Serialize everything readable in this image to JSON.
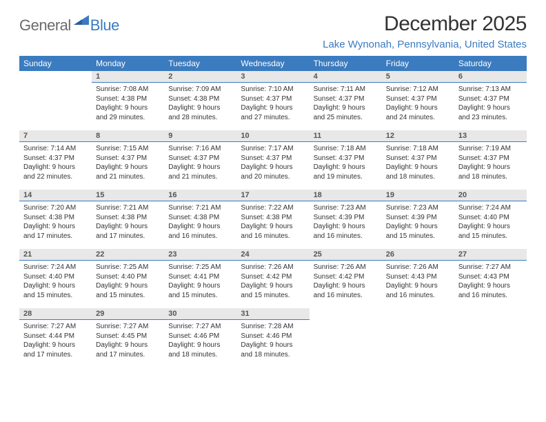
{
  "logo": {
    "general": "General",
    "blue": "Blue"
  },
  "title": "December 2025",
  "location": "Lake Wynonah, Pennsylvania, United States",
  "colors": {
    "header_bg": "#3b7bbf",
    "header_text": "#ffffff",
    "daynum_bg": "#e8e8e8",
    "daynum_border": "#3b7bbf",
    "logo_gray": "#6b6b6b",
    "logo_blue": "#3b7bbf",
    "body_text": "#333333",
    "page_bg": "#ffffff"
  },
  "fonts": {
    "title_size": 30,
    "location_size": 15,
    "dayheader_size": 12,
    "daynum_size": 11,
    "body_size": 10
  },
  "day_headers": [
    "Sunday",
    "Monday",
    "Tuesday",
    "Wednesday",
    "Thursday",
    "Friday",
    "Saturday"
  ],
  "weeks": [
    [
      null,
      {
        "n": "1",
        "sr": "Sunrise: 7:08 AM",
        "ss": "Sunset: 4:38 PM",
        "d1": "Daylight: 9 hours",
        "d2": "and 29 minutes."
      },
      {
        "n": "2",
        "sr": "Sunrise: 7:09 AM",
        "ss": "Sunset: 4:38 PM",
        "d1": "Daylight: 9 hours",
        "d2": "and 28 minutes."
      },
      {
        "n": "3",
        "sr": "Sunrise: 7:10 AM",
        "ss": "Sunset: 4:37 PM",
        "d1": "Daylight: 9 hours",
        "d2": "and 27 minutes."
      },
      {
        "n": "4",
        "sr": "Sunrise: 7:11 AM",
        "ss": "Sunset: 4:37 PM",
        "d1": "Daylight: 9 hours",
        "d2": "and 25 minutes."
      },
      {
        "n": "5",
        "sr": "Sunrise: 7:12 AM",
        "ss": "Sunset: 4:37 PM",
        "d1": "Daylight: 9 hours",
        "d2": "and 24 minutes."
      },
      {
        "n": "6",
        "sr": "Sunrise: 7:13 AM",
        "ss": "Sunset: 4:37 PM",
        "d1": "Daylight: 9 hours",
        "d2": "and 23 minutes."
      }
    ],
    [
      {
        "n": "7",
        "sr": "Sunrise: 7:14 AM",
        "ss": "Sunset: 4:37 PM",
        "d1": "Daylight: 9 hours",
        "d2": "and 22 minutes."
      },
      {
        "n": "8",
        "sr": "Sunrise: 7:15 AM",
        "ss": "Sunset: 4:37 PM",
        "d1": "Daylight: 9 hours",
        "d2": "and 21 minutes."
      },
      {
        "n": "9",
        "sr": "Sunrise: 7:16 AM",
        "ss": "Sunset: 4:37 PM",
        "d1": "Daylight: 9 hours",
        "d2": "and 21 minutes."
      },
      {
        "n": "10",
        "sr": "Sunrise: 7:17 AM",
        "ss": "Sunset: 4:37 PM",
        "d1": "Daylight: 9 hours",
        "d2": "and 20 minutes."
      },
      {
        "n": "11",
        "sr": "Sunrise: 7:18 AM",
        "ss": "Sunset: 4:37 PM",
        "d1": "Daylight: 9 hours",
        "d2": "and 19 minutes."
      },
      {
        "n": "12",
        "sr": "Sunrise: 7:18 AM",
        "ss": "Sunset: 4:37 PM",
        "d1": "Daylight: 9 hours",
        "d2": "and 18 minutes."
      },
      {
        "n": "13",
        "sr": "Sunrise: 7:19 AM",
        "ss": "Sunset: 4:37 PM",
        "d1": "Daylight: 9 hours",
        "d2": "and 18 minutes."
      }
    ],
    [
      {
        "n": "14",
        "sr": "Sunrise: 7:20 AM",
        "ss": "Sunset: 4:38 PM",
        "d1": "Daylight: 9 hours",
        "d2": "and 17 minutes."
      },
      {
        "n": "15",
        "sr": "Sunrise: 7:21 AM",
        "ss": "Sunset: 4:38 PM",
        "d1": "Daylight: 9 hours",
        "d2": "and 17 minutes."
      },
      {
        "n": "16",
        "sr": "Sunrise: 7:21 AM",
        "ss": "Sunset: 4:38 PM",
        "d1": "Daylight: 9 hours",
        "d2": "and 16 minutes."
      },
      {
        "n": "17",
        "sr": "Sunrise: 7:22 AM",
        "ss": "Sunset: 4:38 PM",
        "d1": "Daylight: 9 hours",
        "d2": "and 16 minutes."
      },
      {
        "n": "18",
        "sr": "Sunrise: 7:23 AM",
        "ss": "Sunset: 4:39 PM",
        "d1": "Daylight: 9 hours",
        "d2": "and 16 minutes."
      },
      {
        "n": "19",
        "sr": "Sunrise: 7:23 AM",
        "ss": "Sunset: 4:39 PM",
        "d1": "Daylight: 9 hours",
        "d2": "and 15 minutes."
      },
      {
        "n": "20",
        "sr": "Sunrise: 7:24 AM",
        "ss": "Sunset: 4:40 PM",
        "d1": "Daylight: 9 hours",
        "d2": "and 15 minutes."
      }
    ],
    [
      {
        "n": "21",
        "sr": "Sunrise: 7:24 AM",
        "ss": "Sunset: 4:40 PM",
        "d1": "Daylight: 9 hours",
        "d2": "and 15 minutes."
      },
      {
        "n": "22",
        "sr": "Sunrise: 7:25 AM",
        "ss": "Sunset: 4:40 PM",
        "d1": "Daylight: 9 hours",
        "d2": "and 15 minutes."
      },
      {
        "n": "23",
        "sr": "Sunrise: 7:25 AM",
        "ss": "Sunset: 4:41 PM",
        "d1": "Daylight: 9 hours",
        "d2": "and 15 minutes."
      },
      {
        "n": "24",
        "sr": "Sunrise: 7:26 AM",
        "ss": "Sunset: 4:42 PM",
        "d1": "Daylight: 9 hours",
        "d2": "and 15 minutes."
      },
      {
        "n": "25",
        "sr": "Sunrise: 7:26 AM",
        "ss": "Sunset: 4:42 PM",
        "d1": "Daylight: 9 hours",
        "d2": "and 16 minutes."
      },
      {
        "n": "26",
        "sr": "Sunrise: 7:26 AM",
        "ss": "Sunset: 4:43 PM",
        "d1": "Daylight: 9 hours",
        "d2": "and 16 minutes."
      },
      {
        "n": "27",
        "sr": "Sunrise: 7:27 AM",
        "ss": "Sunset: 4:43 PM",
        "d1": "Daylight: 9 hours",
        "d2": "and 16 minutes."
      }
    ],
    [
      {
        "n": "28",
        "sr": "Sunrise: 7:27 AM",
        "ss": "Sunset: 4:44 PM",
        "d1": "Daylight: 9 hours",
        "d2": "and 17 minutes."
      },
      {
        "n": "29",
        "sr": "Sunrise: 7:27 AM",
        "ss": "Sunset: 4:45 PM",
        "d1": "Daylight: 9 hours",
        "d2": "and 17 minutes."
      },
      {
        "n": "30",
        "sr": "Sunrise: 7:27 AM",
        "ss": "Sunset: 4:46 PM",
        "d1": "Daylight: 9 hours",
        "d2": "and 18 minutes."
      },
      {
        "n": "31",
        "sr": "Sunrise: 7:28 AM",
        "ss": "Sunset: 4:46 PM",
        "d1": "Daylight: 9 hours",
        "d2": "and 18 minutes."
      },
      null,
      null,
      null
    ]
  ]
}
